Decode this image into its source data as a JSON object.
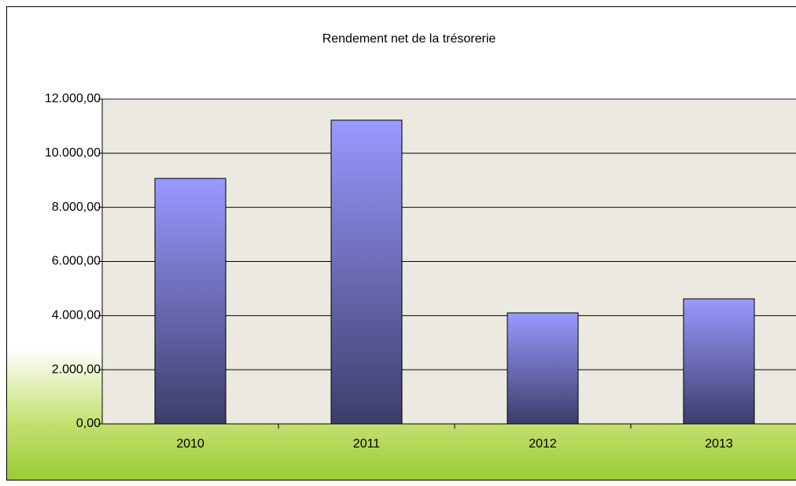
{
  "chart_data": {
    "type": "bar",
    "title": "Rendement net de la trésorerie",
    "categories": [
      "2010",
      "2011",
      "2012",
      "2013"
    ],
    "values": [
      9070,
      11220,
      4100,
      4620
    ],
    "color": "#9999ff",
    "ylim": [
      0,
      12000
    ],
    "yticks": [
      {
        "value": 0,
        "label": "0,00"
      },
      {
        "value": 2000,
        "label": "2.000,00"
      },
      {
        "value": 4000,
        "label": "4.000,00"
      },
      {
        "value": 6000,
        "label": "6.000,00"
      },
      {
        "value": 8000,
        "label": "8.000,00"
      },
      {
        "value": 10000,
        "label": "10.000,00"
      },
      {
        "value": 12000,
        "label": "12.000,00"
      }
    ],
    "grid": true
  }
}
